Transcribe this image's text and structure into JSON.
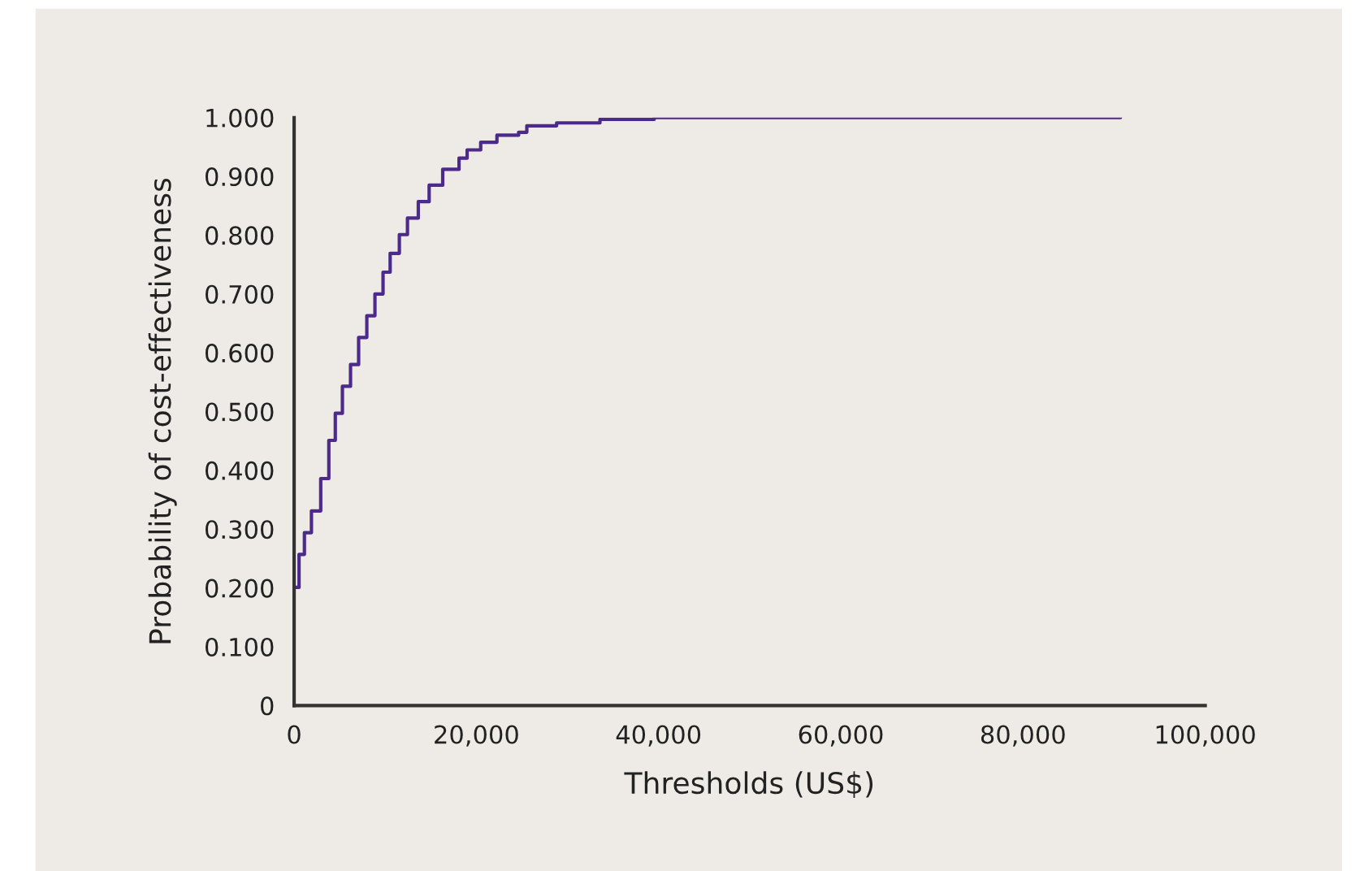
{
  "chart_data": {
    "type": "step",
    "xlabel": "Thresholds (US$)",
    "ylabel": "Probability of cost-effectiveness",
    "series": [
      {
        "color": "#4b2a8c",
        "x": [
          0,
          540,
          1130,
          1900,
          2920,
          3810,
          4520,
          5300,
          6190,
          7080,
          7980,
          8870,
          9760,
          10540,
          11550,
          12440,
          13630,
          14820,
          16310,
          18100,
          18990,
          20480,
          22260,
          24640,
          25540,
          28810,
          33570,
          39520,
          90700
        ],
        "values": [
          0.201,
          0.257,
          0.294,
          0.331,
          0.386,
          0.451,
          0.497,
          0.543,
          0.58,
          0.626,
          0.663,
          0.7,
          0.737,
          0.769,
          0.801,
          0.829,
          0.857,
          0.885,
          0.912,
          0.931,
          0.945,
          0.958,
          0.97,
          0.975,
          0.986,
          0.991,
          0.997,
          1.0,
          1.0
        ]
      }
    ],
    "xlim": [
      0,
      100000
    ],
    "xticks": [
      0,
      {
        "value": 20000,
        "label": "20,000"
      },
      {
        "value": 40000,
        "label": "40,000"
      },
      {
        "value": 60000,
        "label": "60,000"
      },
      {
        "value": 80000,
        "label": "80,000"
      },
      {
        "value": 100000,
        "label": "100,000"
      }
    ],
    "ylim": [
      0,
      1.0
    ],
    "yticks": [
      0,
      {
        "value": 0.1,
        "label": "0.100"
      },
      {
        "value": 0.2,
        "label": "0.200"
      },
      {
        "value": 0.3,
        "label": "0.300"
      },
      {
        "value": 0.4,
        "label": "0.400"
      },
      {
        "value": 0.5,
        "label": "0.500"
      },
      {
        "value": 0.6,
        "label": "0.600"
      },
      {
        "value": 0.7,
        "label": "0.700"
      },
      {
        "value": 0.8,
        "label": "0.800"
      },
      {
        "value": 0.9,
        "label": "0.900"
      },
      {
        "value": 1.0,
        "label": "1.000"
      }
    ],
    "grid": false,
    "legend": false
  }
}
